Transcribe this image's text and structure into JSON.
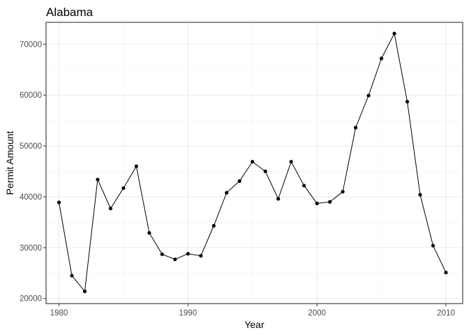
{
  "chart_data": {
    "type": "line",
    "title": "Alabama",
    "xlabel": "Year",
    "ylabel": "Permit Amount",
    "xlim": [
      1979,
      2011.3
    ],
    "ylim": [
      19000,
      74300
    ],
    "x_ticks": [
      1980,
      1990,
      2000,
      2010
    ],
    "y_ticks": [
      20000,
      30000,
      40000,
      50000,
      60000,
      70000
    ],
    "x_tick_labels": [
      "1980",
      "1990",
      "2000",
      "2010"
    ],
    "y_tick_labels": [
      "20000",
      "30000",
      "40000",
      "50000",
      "60000",
      "70000"
    ],
    "grid": true,
    "legend": "none",
    "x": [
      1980,
      1981,
      1982,
      1983,
      1984,
      1985,
      1986,
      1987,
      1988,
      1989,
      1990,
      1991,
      1992,
      1993,
      1994,
      1995,
      1996,
      1997,
      1998,
      1999,
      2000,
      2001,
      2002,
      2003,
      2004,
      2005,
      2006,
      2007,
      2008,
      2009,
      2010
    ],
    "y": [
      38900,
      24500,
      21400,
      43400,
      37700,
      41700,
      46000,
      32900,
      28700,
      27700,
      28800,
      28400,
      34300,
      40800,
      43100,
      46900,
      45000,
      39600,
      46900,
      42200,
      38700,
      39000,
      41000,
      53600,
      59900,
      67200,
      72100,
      58700,
      40400,
      30400,
      25100
    ],
    "colors": {
      "line": "#000000",
      "points": "#000000",
      "panel_border": "#333333",
      "grid": "#ebebeb"
    }
  }
}
